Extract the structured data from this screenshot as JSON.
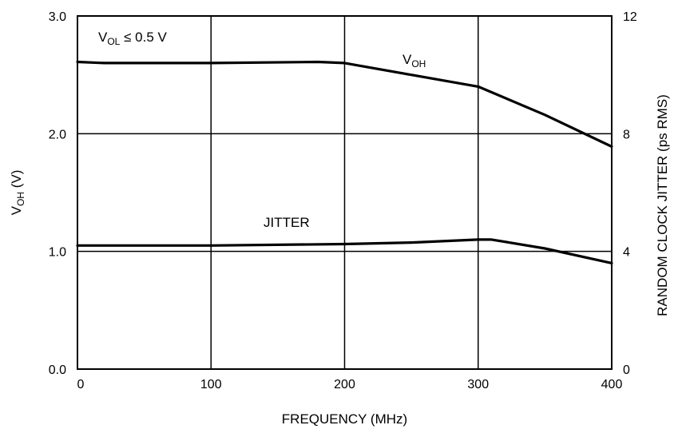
{
  "chart_data": {
    "type": "line",
    "xlabel": "FREQUENCY (MHz)",
    "xlim": [
      0,
      400
    ],
    "x_ticks": [
      "0",
      "100",
      "200",
      "300",
      "400"
    ],
    "left_axis": {
      "label_main": "V",
      "label_sub": "OH",
      "label_unit": " (V)",
      "ylim": [
        0,
        3
      ],
      "ticks": [
        "0.0",
        "1.0",
        "2.0",
        "3.0"
      ]
    },
    "right_axis": {
      "label": "RANDOM CLOCK JITTER (ps RMS)",
      "ylim": [
        0,
        12
      ],
      "ticks": [
        "0",
        "4",
        "8",
        "12"
      ]
    },
    "grid": true,
    "series": [
      {
        "name": "VOH",
        "axis": "left",
        "x": [
          0,
          20,
          100,
          180,
          200,
          250,
          300,
          350,
          400
        ],
        "y": [
          2.61,
          2.6,
          2.6,
          2.61,
          2.6,
          2.5,
          2.4,
          2.16,
          1.89
        ]
      },
      {
        "name": "JITTER",
        "axis": "right",
        "x": [
          0,
          100,
          200,
          250,
          300,
          310,
          350,
          400
        ],
        "y": [
          4.2,
          4.2,
          4.25,
          4.3,
          4.4,
          4.4,
          4.1,
          3.6
        ]
      }
    ],
    "annotations": {
      "condition": {
        "main": "V",
        "sub": "OL",
        "rest": " ≤ 0.5 V"
      },
      "voh_label": {
        "main": "V",
        "sub": "OH"
      },
      "jitter_label": "JITTER"
    }
  }
}
